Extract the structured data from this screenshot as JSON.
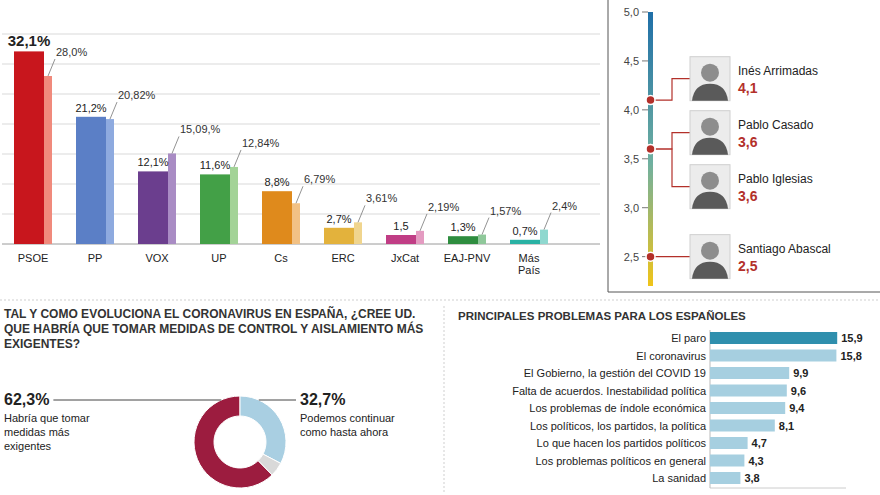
{
  "chart_data": [
    {
      "type": "bar",
      "categories": [
        "PSOE",
        "PP",
        "VOX",
        "UP",
        "Cs",
        "ERC",
        "JxCat",
        "EAJ-PNV",
        "Más País"
      ],
      "series": [
        {
          "colors": [
            "#c8161d",
            "#5b7fc6",
            "#6b3e8e",
            "#43a047",
            "#df8a1c",
            "#e3b23c",
            "#c03d85",
            "#2e8d3f",
            "#29b2a4"
          ],
          "values": [
            32.1,
            21.2,
            12.1,
            11.6,
            8.8,
            2.7,
            1.5,
            1.3,
            0.7
          ],
          "value_labels": [
            "32,1%",
            "21,2%",
            "12,1%",
            "11,6%",
            "8,8%",
            "2,7%",
            "1,5",
            "1,3%",
            "0,7%"
          ]
        },
        {
          "colors": [
            "#f08a7c",
            "#8eaadf",
            "#a98cc4",
            "#a3d397",
            "#f2c184",
            "#f0d58e",
            "#e49bc1",
            "#8fc89a",
            "#8fd8cf"
          ],
          "values": [
            28.0,
            20.82,
            15.09,
            12.84,
            6.79,
            3.61,
            2.19,
            1.57,
            2.4
          ],
          "value_labels": [
            "28,0%",
            "20,82%",
            "15,09,%",
            "12,84%",
            "6,79%",
            "3,61%",
            "2,19%",
            "1,57%",
            "2,4%"
          ]
        }
      ],
      "ylim": [
        0,
        35
      ],
      "yticks": [
        0,
        5,
        10,
        15,
        20,
        25,
        30,
        35
      ],
      "grid": true,
      "tick_labels": "x",
      "data_labels": true
    },
    {
      "type": "dot",
      "categories": [
        "Inés Arrimadas",
        "Pablo Casado",
        "Pablo Iglesias",
        "Santiago Abascal"
      ],
      "values": [
        4.1,
        3.6,
        3.6,
        2.5
      ],
      "value_labels": [
        "4,1",
        "3,6",
        "3,6",
        "2,5"
      ],
      "ylim": [
        2.2,
        5.0
      ],
      "yticks": [
        {
          "value": 2.5,
          "label": "2,5"
        },
        {
          "value": 3.0,
          "label": "3,0"
        },
        {
          "value": 3.5,
          "label": "3,5"
        },
        {
          "value": 4.0,
          "label": "4,0"
        },
        {
          "value": 4.5,
          "label": "4,5"
        },
        {
          "value": 5.0,
          "label": "5,0"
        }
      ],
      "color": "#b3302a",
      "data_labels": true
    },
    {
      "type": "pie",
      "title": "TAL Y COMO EVOLUCIONA EL CORONAVIRUS EN ESPAÑA, ¿CREE UD. QUE HABRÍA QUE TOMAR MEDIDAS DE CONTROL Y AISLAMIENTO MÁS EXIGENTES?",
      "categories": [
        "Habría que tomar medidas más exigentes",
        "Podemos continuar como hasta ahora",
        null
      ],
      "values": [
        62.3,
        32.7,
        5.0
      ],
      "value_labels": [
        "62,3%",
        "32,7%",
        null
      ],
      "colors": [
        "#9c1c3f",
        "#a9cfe2",
        "#d9d9d9"
      ],
      "data_labels": true
    },
    {
      "type": "bar",
      "orientation": "horizontal",
      "title": "PRINCIPALES PROBLEMAS PARA LOS ESPAÑOLES",
      "categories": [
        "El paro",
        "El coronavirus",
        "El Gobierno, la gestión del COVID 19",
        "Falta de acuerdos. Inestabilidad política",
        "Los problemas de índole económica",
        "Los políticos, los partidos, la política",
        "Lo que hacen los partidos políticos",
        "Los problemas políticos en general",
        "La sanidad"
      ],
      "values": [
        15.9,
        15.8,
        9.9,
        9.6,
        9.4,
        8.1,
        4.7,
        4.3,
        3.8
      ],
      "value_labels": [
        "15,9",
        "15,8",
        "9,9",
        "9,6",
        "9,4",
        "8,1",
        "4,7",
        "4,3",
        "3,8"
      ],
      "colors": [
        "#2f8fad",
        "#a6cfe0",
        "#a6cfe0",
        "#a6cfe0",
        "#a6cfe0",
        "#a6cfe0",
        "#a6cfe0",
        "#a6cfe0",
        "#a6cfe0"
      ],
      "xlim": [
        0,
        17
      ],
      "xticks": [
        0
      ],
      "tick_labels": "y",
      "data_labels": true
    }
  ]
}
